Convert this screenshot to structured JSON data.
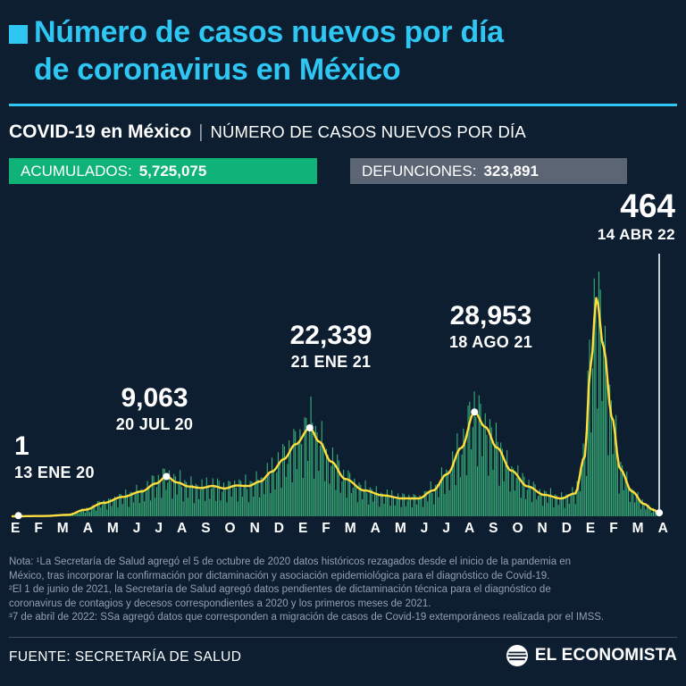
{
  "header": {
    "title_line1": "Número de casos nuevos por día",
    "title_line2": "de coronavirus en México",
    "subtitle_bold": "COVID-19 en México",
    "subtitle_sep": "|",
    "subtitle_regular": "NÚMERO DE CASOS NUEVOS POR DÍA"
  },
  "badges": [
    {
      "label": "ACUMULADOS:",
      "value": "5,725,075"
    },
    {
      "label": "DEFUNCIONES:",
      "value": "323,891"
    }
  ],
  "chart_data": {
    "type": "bar",
    "title": "COVID-19 en México — Número de casos nuevos por día",
    "x_range": [
      "ENE 2020",
      "14 ABR 2022"
    ],
    "x_tick_labels": [
      "E",
      "F",
      "M",
      "A",
      "M",
      "J",
      "J",
      "A",
      "S",
      "O",
      "N",
      "D",
      "E",
      "F",
      "M",
      "A",
      "M",
      "J",
      "J",
      "A",
      "S",
      "O",
      "N",
      "D",
      "E",
      "F",
      "M",
      "A"
    ],
    "ylim": [
      0,
      50000
    ],
    "grid": false,
    "total_months": 27.9,
    "series": [
      {
        "name": "Casos nuevos diarios",
        "render": "bars",
        "color": "#46d98b"
      },
      {
        "name": "Promedio de casos (línea)",
        "render": "line",
        "color": "#ffdd3c"
      }
    ],
    "avg_anchors": [
      [
        0,
        0
      ],
      [
        1.5,
        60
      ],
      [
        2.5,
        300
      ],
      [
        3.2,
        1300
      ],
      [
        4,
        2700
      ],
      [
        4.8,
        3900
      ],
      [
        5.6,
        5000
      ],
      [
        6.2,
        6600
      ],
      [
        6.65,
        8000
      ],
      [
        7.1,
        6800
      ],
      [
        7.6,
        6000
      ],
      [
        8.1,
        5700
      ],
      [
        8.6,
        6100
      ],
      [
        9.1,
        5600
      ],
      [
        9.6,
        6200
      ],
      [
        10.1,
        6100
      ],
      [
        10.6,
        7000
      ],
      [
        11.1,
        9000
      ],
      [
        11.6,
        11500
      ],
      [
        12.1,
        14500
      ],
      [
        12.7,
        17800
      ],
      [
        13.1,
        15000
      ],
      [
        13.6,
        11000
      ],
      [
        14.2,
        7500
      ],
      [
        15,
        5200
      ],
      [
        15.8,
        4200
      ],
      [
        16.6,
        3600
      ],
      [
        17.3,
        3600
      ],
      [
        17.9,
        5200
      ],
      [
        18.5,
        8500
      ],
      [
        19.1,
        13800
      ],
      [
        19.65,
        21000
      ],
      [
        20.1,
        18000
      ],
      [
        20.6,
        13800
      ],
      [
        21.2,
        9200
      ],
      [
        21.9,
        6000
      ],
      [
        22.6,
        4300
      ],
      [
        23.3,
        3600
      ],
      [
        23.9,
        4600
      ],
      [
        24.3,
        12000
      ],
      [
        24.55,
        30000
      ],
      [
        24.8,
        44000
      ],
      [
        25.1,
        34000
      ],
      [
        25.45,
        20000
      ],
      [
        25.8,
        9500
      ],
      [
        26.3,
        5000
      ],
      [
        26.8,
        2500
      ],
      [
        27.2,
        1300
      ],
      [
        27.45,
        700
      ]
    ],
    "annotations": [
      {
        "value": "1",
        "date": "13 ENE 20",
        "month": 0.4,
        "avg": 120
      },
      {
        "value": "9,063",
        "date": "20 JUL 20",
        "month": 6.65,
        "avg": 8000
      },
      {
        "value": "22,339",
        "date": "21 ENE 21",
        "month": 12.7,
        "avg": 17800
      },
      {
        "value": "28,953",
        "date": "18 AGO 21",
        "month": 19.65,
        "avg": 21000
      },
      {
        "value": "464",
        "date": "14 ABR 22",
        "month": 27.45,
        "avg": 700
      }
    ],
    "colors": {
      "bars": "#46d98b",
      "line": "#ffdd3c",
      "marker": "#ffffff"
    }
  },
  "notes": {
    "lines": [
      "Nota: ¹La Secretaría de Salud agregó el 5 de octubre de 2020 datos históricos rezagados desde el inicio de la pandemia en",
      "México, tras incorporar la confirmación por dictaminación y asociación epidemiológica para el diagnóstico de Covid-19.",
      "²El 1 de junio de 2021, la Secretaría de Salud agregó datos pendientes de dictaminación técnica para el diagnóstico de",
      "coronavirus de contagios y decesos correspondientes a 2020 y los primeros meses de 2021.",
      "³7 de abril de 2022: SSa agregó datos que corresponden a migración de casos de Covid-19 extemporáneos realizada por el IMSS."
    ]
  },
  "footer": {
    "source": "FUENTE: SECRETARÍA DE SALUD",
    "brand": "EL ECONOMISTA"
  }
}
